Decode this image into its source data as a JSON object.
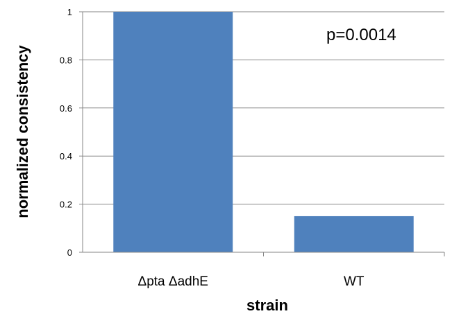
{
  "chart_data": {
    "type": "bar",
    "categories": [
      "Δpta ΔadhE",
      "WT"
    ],
    "values": [
      1.0,
      0.15
    ],
    "xlabel": "strain",
    "ylabel": "normalized consistency",
    "ylim": [
      0,
      1
    ],
    "yticks": [
      "0",
      "0.2",
      "0.4",
      "0.6",
      "0.8",
      "1"
    ],
    "annotation": "p=0.0014",
    "grid": true,
    "bar_color": "#4f81bd",
    "grid_color": "#868686"
  }
}
